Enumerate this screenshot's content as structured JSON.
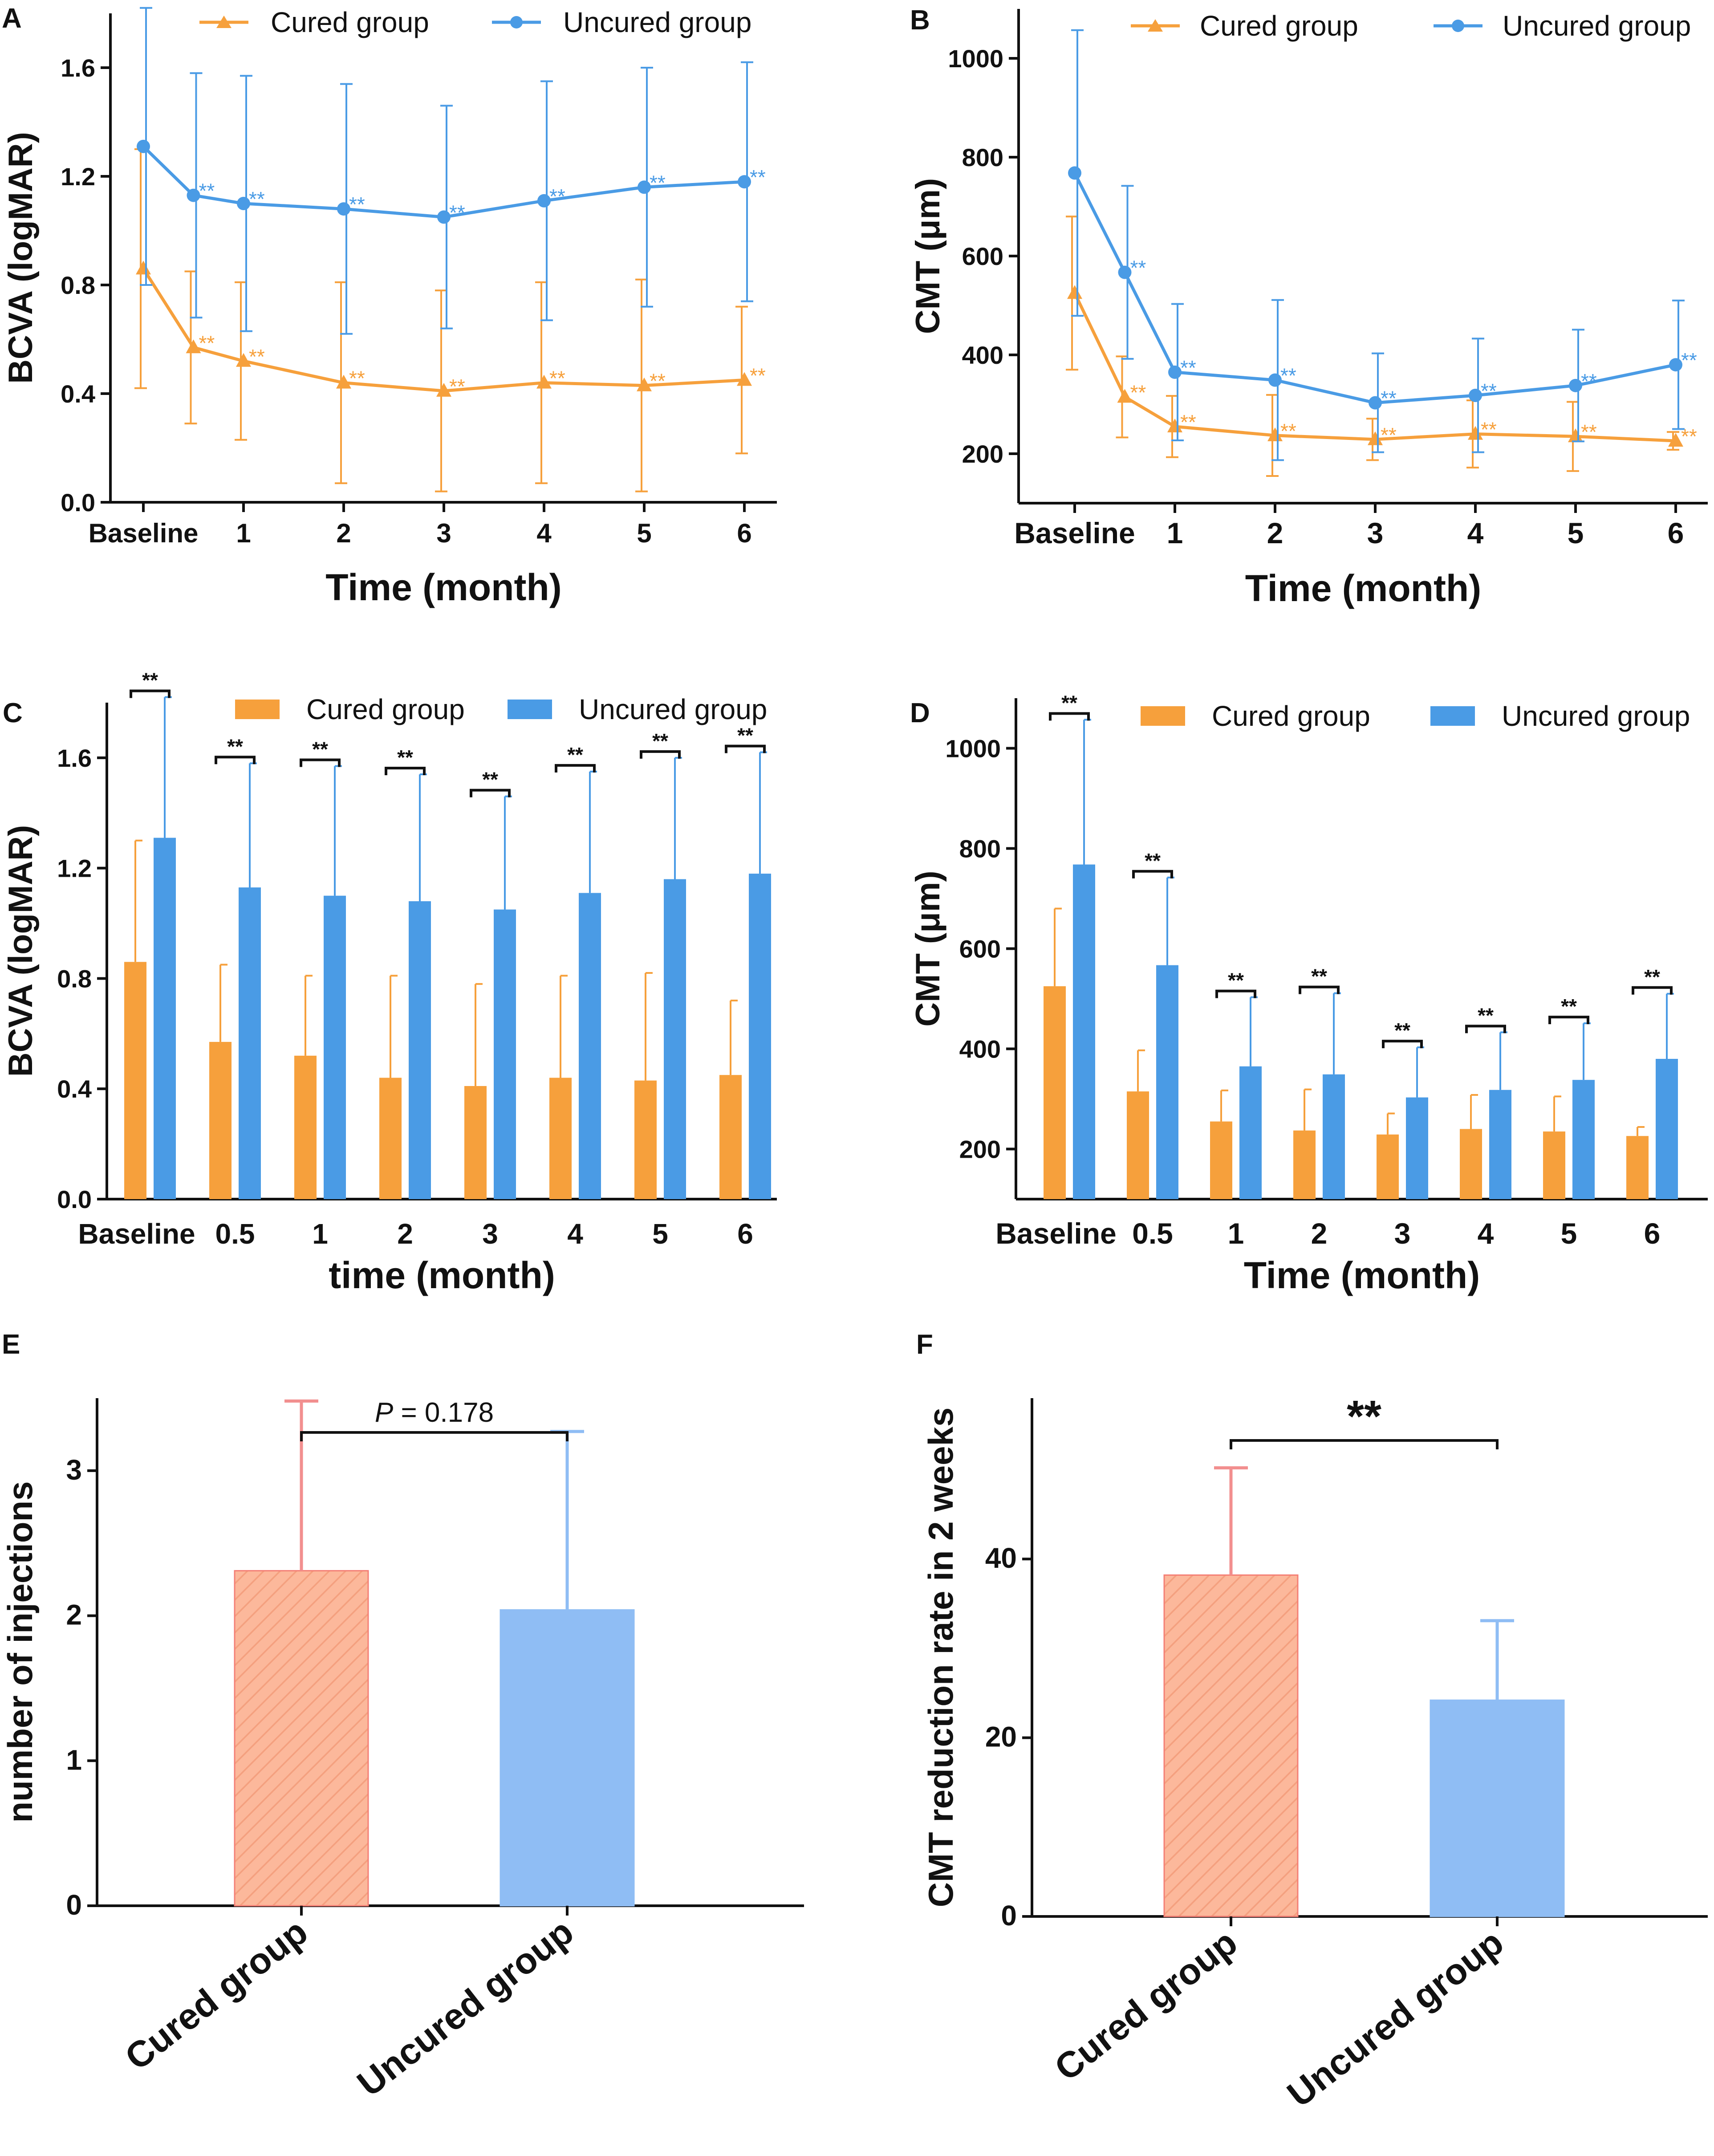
{
  "colors": {
    "cured": "#F6A03C",
    "uncured": "#4A9BE5",
    "cured_hatch_bar": "#FCB89B",
    "cured_hatch_stroke": "#F47F75",
    "uncured_bar_e": "#8FBDF4",
    "axis": "#111111"
  },
  "chart_data": [
    {
      "panel": "A",
      "type": "line",
      "ylabel": "BCVA (logMAR)",
      "xlabel": "Time (month)",
      "x": [
        0,
        0.5,
        1,
        2,
        3,
        4,
        5,
        6
      ],
      "xtick_values": [
        0,
        1,
        2,
        3,
        4,
        5,
        6
      ],
      "xtick_labels": [
        "Baseline",
        "1",
        "2",
        "3",
        "4",
        "5",
        "6"
      ],
      "ylim": [
        0,
        1.8
      ],
      "yticks": [
        0,
        0.4,
        0.8,
        1.2,
        1.6
      ],
      "ytick_labels": [
        "0.0",
        "0.4",
        "0.8",
        "1.2",
        "1.6"
      ],
      "legend": [
        "Cured group",
        "Uncured group"
      ],
      "series": [
        {
          "name": "Cured group",
          "values": [
            0.86,
            0.57,
            0.52,
            0.44,
            0.41,
            0.44,
            0.43,
            0.45
          ],
          "sd": [
            0.44,
            0.28,
            0.29,
            0.37,
            0.37,
            0.37,
            0.39,
            0.27
          ],
          "sig": [
            "",
            "**",
            "**",
            "**",
            "**",
            "**",
            "**",
            "**"
          ]
        },
        {
          "name": "Uncured group",
          "values": [
            1.31,
            1.13,
            1.1,
            1.08,
            1.05,
            1.11,
            1.16,
            1.18
          ],
          "sd": [
            0.51,
            0.45,
            0.47,
            0.46,
            0.41,
            0.44,
            0.44,
            0.44
          ],
          "sig": [
            "",
            "**",
            "**",
            "**",
            "**",
            "**",
            "**",
            "**"
          ]
        }
      ]
    },
    {
      "panel": "B",
      "type": "line",
      "ylabel": "CMT (μm)",
      "xlabel": "Time (month)",
      "x": [
        0,
        0.5,
        1,
        2,
        3,
        4,
        5,
        6
      ],
      "xtick_values": [
        0,
        1,
        2,
        3,
        4,
        5,
        6
      ],
      "xtick_labels": [
        "Baseline",
        "1",
        "2",
        "3",
        "4",
        "5",
        "6"
      ],
      "ylim": [
        100,
        1100
      ],
      "yticks": [
        200,
        400,
        600,
        800,
        1000
      ],
      "ytick_labels": [
        "200",
        "400",
        "600",
        "800",
        "1000"
      ],
      "legend": [
        "Cured group",
        "Uncured group"
      ],
      "series": [
        {
          "name": "Cured group",
          "values": [
            525,
            315,
            255,
            237,
            229,
            240,
            235,
            226
          ],
          "sd": [
            155,
            82,
            62,
            82,
            42,
            68,
            70,
            18
          ],
          "sig": [
            "",
            "**",
            "**",
            "**",
            "**",
            "**",
            "**",
            "**"
          ]
        },
        {
          "name": "Uncured group",
          "values": [
            768,
            567,
            365,
            349,
            303,
            318,
            338,
            380
          ],
          "sd": [
            289,
            175,
            138,
            162,
            100,
            115,
            113,
            130
          ],
          "sig": [
            "",
            "**",
            "**",
            "**",
            "**",
            "**",
            "**",
            "**"
          ]
        }
      ]
    },
    {
      "panel": "C",
      "type": "bar",
      "ylabel": "BCVA (logMAR)",
      "xlabel": "time (month)",
      "categories": [
        "Baseline",
        "0.5",
        "1",
        "2",
        "3",
        "4",
        "5",
        "6"
      ],
      "ylim": [
        0,
        1.8
      ],
      "yticks": [
        0,
        0.4,
        0.8,
        1.2,
        1.6
      ],
      "ytick_labels": [
        "0.0",
        "0.4",
        "0.8",
        "1.2",
        "1.6"
      ],
      "legend": [
        "Cured group",
        "Uncured group"
      ],
      "significance": [
        "**",
        "**",
        "**",
        "**",
        "**",
        "**",
        "**",
        "**"
      ],
      "series": [
        {
          "name": "Cured group",
          "values": [
            0.86,
            0.57,
            0.52,
            0.44,
            0.41,
            0.44,
            0.43,
            0.45
          ],
          "sd": [
            0.44,
            0.28,
            0.29,
            0.37,
            0.37,
            0.37,
            0.39,
            0.27
          ]
        },
        {
          "name": "Uncured group",
          "values": [
            1.31,
            1.13,
            1.1,
            1.08,
            1.05,
            1.11,
            1.16,
            1.18
          ],
          "sd": [
            0.51,
            0.45,
            0.47,
            0.46,
            0.41,
            0.44,
            0.44,
            0.44
          ]
        }
      ]
    },
    {
      "panel": "D",
      "type": "bar",
      "ylabel": "CMT (μm)",
      "xlabel": "Time (month)",
      "categories": [
        "Baseline",
        "0.5",
        "1",
        "2",
        "3",
        "4",
        "5",
        "6"
      ],
      "ylim": [
        100,
        1100
      ],
      "yticks": [
        200,
        400,
        600,
        800,
        1000
      ],
      "ytick_labels": [
        "200",
        "400",
        "600",
        "800",
        "1000"
      ],
      "legend": [
        "Cured group",
        "Uncured group"
      ],
      "significance": [
        "**",
        "**",
        "**",
        "**",
        "**",
        "**",
        "**",
        "**"
      ],
      "series": [
        {
          "name": "Cured group",
          "values": [
            525,
            315,
            255,
            237,
            229,
            240,
            235,
            226
          ],
          "sd": [
            155,
            82,
            62,
            82,
            42,
            68,
            70,
            18
          ]
        },
        {
          "name": "Uncured group",
          "values": [
            768,
            567,
            365,
            349,
            303,
            318,
            338,
            380
          ],
          "sd": [
            289,
            175,
            138,
            162,
            100,
            115,
            113,
            130
          ]
        }
      ]
    },
    {
      "panel": "E",
      "type": "bar",
      "ylabel": "number of injections",
      "categories": [
        "Cured group",
        "Uncured group"
      ],
      "values": [
        2.31,
        2.04
      ],
      "sd": [
        1.17,
        1.23
      ],
      "ylim": [
        0,
        3.5
      ],
      "yticks": [
        0,
        1,
        2,
        3
      ],
      "ytick_labels": [
        "0",
        "1",
        "2",
        "3"
      ],
      "comparison_p_symbol": "P",
      "comparison_value": " = 0.178"
    },
    {
      "panel": "F",
      "type": "bar",
      "ylabel": "CMT reduction rate in 2 weeks",
      "categories": [
        "Cured group",
        "Uncured group"
      ],
      "values": [
        38.2,
        24.2
      ],
      "sd": [
        12.0,
        8.9
      ],
      "ylim": [
        0,
        58
      ],
      "yticks": [
        0,
        20,
        40
      ],
      "ytick_labels": [
        "0",
        "20",
        "40"
      ],
      "comparison_label": "**"
    }
  ]
}
